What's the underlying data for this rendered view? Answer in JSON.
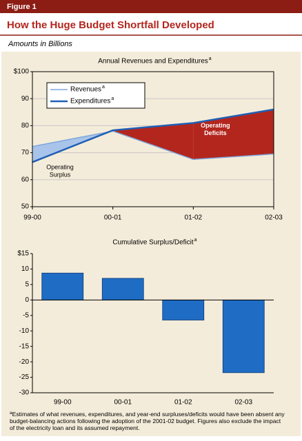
{
  "figure_label": "Figure 1",
  "title": "How the Huge Budget Shortfall Developed",
  "subtitle": "Amounts in Billions",
  "footnote": {
    "marker": "a",
    "text": "Estimates of what revenues, expenditures, and year-end surpluses/deficits would have been absent any budget-balancing actions following the adoption of the 2001-02 budget. Figures also exclude the impact of the electricity loan and its assumed repayment."
  },
  "chart_data": [
    {
      "type": "line",
      "title": "Annual Revenues and Expenditures",
      "title_note": "a",
      "categories": [
        "99-00",
        "00-01",
        "01-02",
        "02-03"
      ],
      "series": [
        {
          "name": "Revenues",
          "note": "a",
          "color": "#7ea6dc",
          "values": [
            72.3,
            78,
            67.5,
            69.5
          ]
        },
        {
          "name": "Expenditures",
          "note": "a",
          "color": "#1f5fb5",
          "values": [
            66.5,
            78.3,
            81,
            86
          ]
        }
      ],
      "surplus_color": "#a9c4ea",
      "deficit_color": "#b3261e",
      "annotations": [
        {
          "text": [
            "Operating",
            "Surplus"
          ]
        },
        {
          "text": [
            "Operating",
            "Deficits"
          ]
        }
      ],
      "ylim": [
        50,
        100
      ],
      "yticks": [
        50,
        60,
        70,
        80,
        90,
        {
          "value": 100,
          "label": "$100"
        }
      ],
      "grid": true,
      "legend": "upper left"
    },
    {
      "type": "bar",
      "title": "Cumulative Surplus/Deficit",
      "title_note": "a",
      "categories": [
        "99-00",
        "00-01",
        "01-02",
        "02-03"
      ],
      "values": [
        8.7,
        7.0,
        -6.5,
        -23.5
      ],
      "color": "#1f6cc4",
      "ylim": [
        -30,
        15
      ],
      "yticks": [
        -30,
        -25,
        -20,
        -15,
        -10,
        -5,
        0,
        5,
        10,
        {
          "value": 15,
          "label": "$15"
        }
      ],
      "grid": false
    }
  ]
}
